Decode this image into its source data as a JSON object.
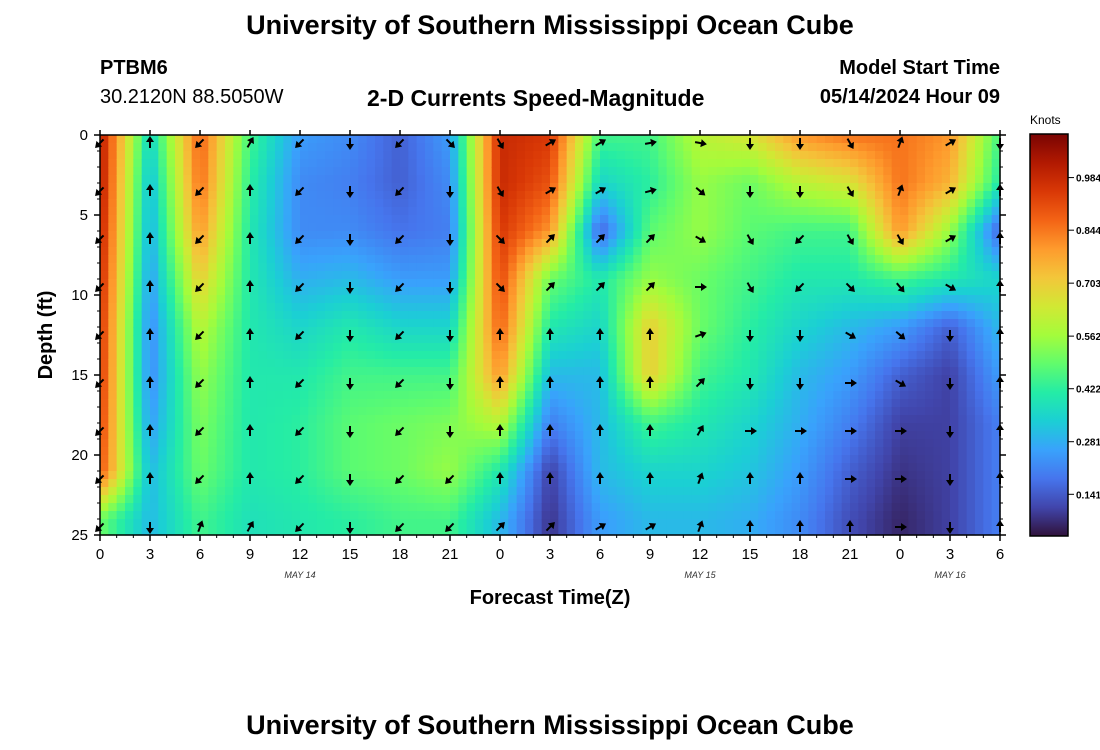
{
  "header": {
    "title": "University of Southern Mississippi Ocean Cube",
    "station_id": "PTBM6",
    "coordinates": "30.2120N  88.5050W",
    "plot_title": "2-D Currents Speed-Magnitude",
    "model_start_label": "Model Start Time",
    "model_start_value": "05/14/2024 Hour 09"
  },
  "footer": {
    "title": "University of Southern Mississippi Ocean Cube"
  },
  "chart_data": {
    "type": "heatmap",
    "title": "2-D Currents Speed-Magnitude",
    "xlabel": "Forecast Time(Z)",
    "ylabel": "Depth (ft)",
    "x_hours_since_start": [
      0,
      3,
      6,
      9,
      12,
      15,
      18,
      21,
      24,
      27,
      30,
      33,
      36,
      39,
      42,
      45,
      48,
      51,
      54
    ],
    "x_tick_labels": [
      "0",
      "3",
      "6",
      "9",
      "12",
      "15",
      "18",
      "21",
      "0",
      "3",
      "6",
      "9",
      "12",
      "15",
      "18",
      "21",
      "0",
      "3",
      "6"
    ],
    "xlim": [
      0,
      54
    ],
    "y_depths_ft": [
      0,
      3,
      6,
      9,
      12,
      15,
      18,
      21,
      24
    ],
    "y_tick_labels": [
      "0",
      "5",
      "10",
      "15",
      "20",
      "25"
    ],
    "y_tick_values": [
      0,
      5,
      10,
      15,
      20,
      25
    ],
    "ylim": [
      0,
      25
    ],
    "date_labels": [
      {
        "text": "MAY 14",
        "hour": 12
      },
      {
        "text": "MAY 15",
        "hour": 36
      },
      {
        "text": "MAY 16",
        "hour": 51
      }
    ],
    "colorbar": {
      "units": "Knots",
      "ticks": [
        "0.984",
        "0.844",
        "0.703",
        "0.562",
        "0.422",
        "0.281",
        "0.141"
      ],
      "tick_values": [
        0.984,
        0.844,
        0.703,
        0.562,
        0.422,
        0.281,
        0.141
      ],
      "range": [
        0.03,
        1.1
      ],
      "colors": [
        "#30123b",
        "#4145ab",
        "#4675ed",
        "#39a2fc",
        "#1bcfd4",
        "#24eca6",
        "#61fc6c",
        "#a4fc3b",
        "#d1e834",
        "#f3c63a",
        "#fe9b2d",
        "#f36315",
        "#d93806",
        "#b11901",
        "#7a0403"
      ]
    },
    "speed_knots": [
      [
        1.02,
        1.02,
        1.0,
        0.98,
        0.96,
        0.95,
        0.93,
        0.9,
        0.5
      ],
      [
        0.35,
        0.3,
        0.28,
        0.25,
        0.22,
        0.22,
        0.25,
        0.3,
        0.3
      ],
      [
        0.88,
        0.86,
        0.8,
        0.7,
        0.6,
        0.55,
        0.52,
        0.5,
        0.45
      ],
      [
        0.45,
        0.42,
        0.4,
        0.4,
        0.4,
        0.4,
        0.4,
        0.4,
        0.38
      ],
      [
        0.25,
        0.22,
        0.22,
        0.28,
        0.35,
        0.4,
        0.42,
        0.42,
        0.4
      ],
      [
        0.22,
        0.2,
        0.22,
        0.3,
        0.4,
        0.45,
        0.48,
        0.48,
        0.42
      ],
      [
        0.15,
        0.15,
        0.18,
        0.25,
        0.35,
        0.45,
        0.5,
        0.5,
        0.45
      ],
      [
        0.25,
        0.22,
        0.2,
        0.25,
        0.35,
        0.45,
        0.52,
        0.55,
        0.45
      ],
      [
        0.98,
        0.98,
        0.95,
        0.92,
        0.88,
        0.8,
        0.6,
        0.4,
        0.3
      ],
      [
        0.95,
        0.9,
        0.8,
        0.5,
        0.4,
        0.3,
        0.2,
        0.1,
        0.08
      ],
      [
        0.45,
        0.35,
        0.15,
        0.4,
        0.35,
        0.3,
        0.3,
        0.3,
        0.25
      ],
      [
        0.45,
        0.42,
        0.48,
        0.55,
        0.7,
        0.7,
        0.45,
        0.35,
        0.3
      ],
      [
        0.6,
        0.55,
        0.55,
        0.5,
        0.5,
        0.45,
        0.4,
        0.35,
        0.3
      ],
      [
        0.65,
        0.5,
        0.48,
        0.45,
        0.42,
        0.4,
        0.35,
        0.32,
        0.28
      ],
      [
        0.8,
        0.6,
        0.45,
        0.4,
        0.35,
        0.3,
        0.28,
        0.25,
        0.22
      ],
      [
        0.85,
        0.65,
        0.45,
        0.4,
        0.3,
        0.25,
        0.2,
        0.15,
        0.12
      ],
      [
        0.85,
        0.85,
        0.8,
        0.45,
        0.25,
        0.15,
        0.1,
        0.08,
        0.06
      ],
      [
        0.8,
        0.75,
        0.55,
        0.4,
        0.15,
        0.1,
        0.1,
        0.1,
        0.1
      ],
      [
        0.45,
        0.4,
        0.15,
        0.35,
        0.3,
        0.25,
        0.2,
        0.2,
        0.2
      ]
    ],
    "direction_deg": [
      [
        225,
        225,
        225,
        225,
        225,
        225,
        225,
        225,
        225
      ],
      [
        0,
        0,
        0,
        0,
        0,
        0,
        0,
        0,
        180
      ],
      [
        225,
        225,
        225,
        225,
        225,
        225,
        225,
        225,
        20
      ],
      [
        30,
        0,
        0,
        0,
        0,
        0,
        0,
        0,
        30
      ],
      [
        225,
        225,
        225,
        225,
        225,
        225,
        225,
        225,
        225
      ],
      [
        180,
        180,
        180,
        180,
        180,
        180,
        180,
        180,
        180
      ],
      [
        225,
        225,
        225,
        225,
        225,
        225,
        225,
        225,
        225
      ],
      [
        135,
        180,
        180,
        180,
        180,
        180,
        180,
        225,
        225
      ],
      [
        150,
        150,
        135,
        135,
        0,
        0,
        0,
        0,
        45
      ],
      [
        60,
        60,
        45,
        45,
        0,
        0,
        0,
        0,
        45
      ],
      [
        60,
        60,
        45,
        45,
        0,
        0,
        0,
        0,
        60
      ],
      [
        80,
        75,
        45,
        45,
        0,
        0,
        0,
        0,
        60
      ],
      [
        100,
        130,
        120,
        90,
        70,
        45,
        30,
        20,
        20
      ],
      [
        180,
        180,
        150,
        150,
        180,
        180,
        90,
        0,
        0
      ],
      [
        180,
        180,
        225,
        225,
        180,
        180,
        90,
        0,
        0
      ],
      [
        150,
        150,
        150,
        135,
        120,
        90,
        90,
        90,
        0
      ],
      [
        20,
        20,
        150,
        140,
        130,
        120,
        90,
        90,
        90
      ],
      [
        60,
        60,
        60,
        120,
        180,
        180,
        180,
        180,
        180
      ],
      [
        180,
        0,
        0,
        0,
        0,
        0,
        0,
        0,
        0
      ]
    ]
  }
}
